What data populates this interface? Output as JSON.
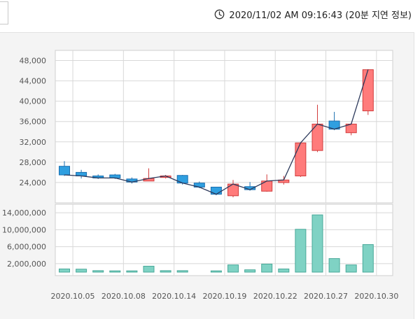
{
  "header": {
    "timestamp": "2020/11/02 AM 09:16:43 (20분 지연 정보)",
    "clock_icon": "clock-icon"
  },
  "colors": {
    "up": "#ff7b7b",
    "up_border": "#d23c3c",
    "down": "#2f9fe0",
    "down_border": "#1a6fb0",
    "volume": "#7fd2c4",
    "volume_border": "#4aa99a",
    "line": "#2d3a5c",
    "grid": "#d8d8d8"
  },
  "chart_data": [
    {
      "type": "candlestick",
      "yticks": [
        "48,000",
        "44,000",
        "40,000",
        "36,000",
        "32,000",
        "28,000",
        "24,000"
      ],
      "ytick_values": [
        48000,
        44000,
        40000,
        36000,
        32000,
        28000,
        24000
      ],
      "ylim": [
        20000,
        50000
      ],
      "xtick_labels": [
        "2020.10.05",
        "2020.10.08",
        "2020.10.14",
        "2020.10.19",
        "2020.10.22",
        "2020.10.27",
        "2020.10.30"
      ],
      "xtick_index": [
        0,
        3,
        6,
        9,
        12,
        15,
        18
      ],
      "candles": [
        {
          "o": 27200,
          "c": 25500,
          "h": 28200,
          "l": 25300
        },
        {
          "o": 26000,
          "c": 25300,
          "h": 26500,
          "l": 24800
        },
        {
          "o": 25300,
          "c": 24900,
          "h": 25600,
          "l": 24700
        },
        {
          "o": 25500,
          "c": 24900,
          "h": 25700,
          "l": 24700
        },
        {
          "o": 24700,
          "c": 24100,
          "h": 25000,
          "l": 23800
        },
        {
          "o": 24300,
          "c": 24800,
          "h": 26800,
          "l": 24300
        },
        {
          "o": 25000,
          "c": 25300,
          "h": 25500,
          "l": 24800
        },
        {
          "o": 25400,
          "c": 23900,
          "h": 25500,
          "l": 23600
        },
        {
          "o": 23900,
          "c": 23100,
          "h": 24200,
          "l": 22900
        },
        {
          "o": 23100,
          "c": 21700,
          "h": 23100,
          "l": 21500
        },
        {
          "o": 21400,
          "c": 23700,
          "h": 24500,
          "l": 21100
        },
        {
          "o": 23200,
          "c": 22600,
          "h": 24100,
          "l": 22400
        },
        {
          "o": 22300,
          "c": 24300,
          "h": 25600,
          "l": 22200
        },
        {
          "o": 24000,
          "c": 24500,
          "h": 25300,
          "l": 23600
        },
        {
          "o": 25300,
          "c": 31800,
          "h": 31900,
          "l": 25100
        },
        {
          "o": 30300,
          "c": 35500,
          "h": 39300,
          "l": 30000
        },
        {
          "o": 36100,
          "c": 34500,
          "h": 37900,
          "l": 34300
        },
        {
          "o": 33800,
          "c": 35500,
          "h": 35700,
          "l": 33300
        },
        {
          "o": 38100,
          "c": 46200,
          "h": 46300,
          "l": 37300
        }
      ]
    },
    {
      "type": "bar",
      "yticks": [
        "14,000,000",
        "10,000,000",
        "6,000,000",
        "2,000,000"
      ],
      "ytick_values": [
        14000000,
        10000000,
        6000000,
        2000000
      ],
      "ylim": [
        0,
        16000000
      ],
      "values": [
        750000,
        700000,
        350000,
        300000,
        300000,
        1400000,
        350000,
        350000,
        0,
        300000,
        1700000,
        550000,
        1900000,
        750000,
        10100000,
        13500000,
        3200000,
        1700000,
        6500000
      ]
    }
  ]
}
